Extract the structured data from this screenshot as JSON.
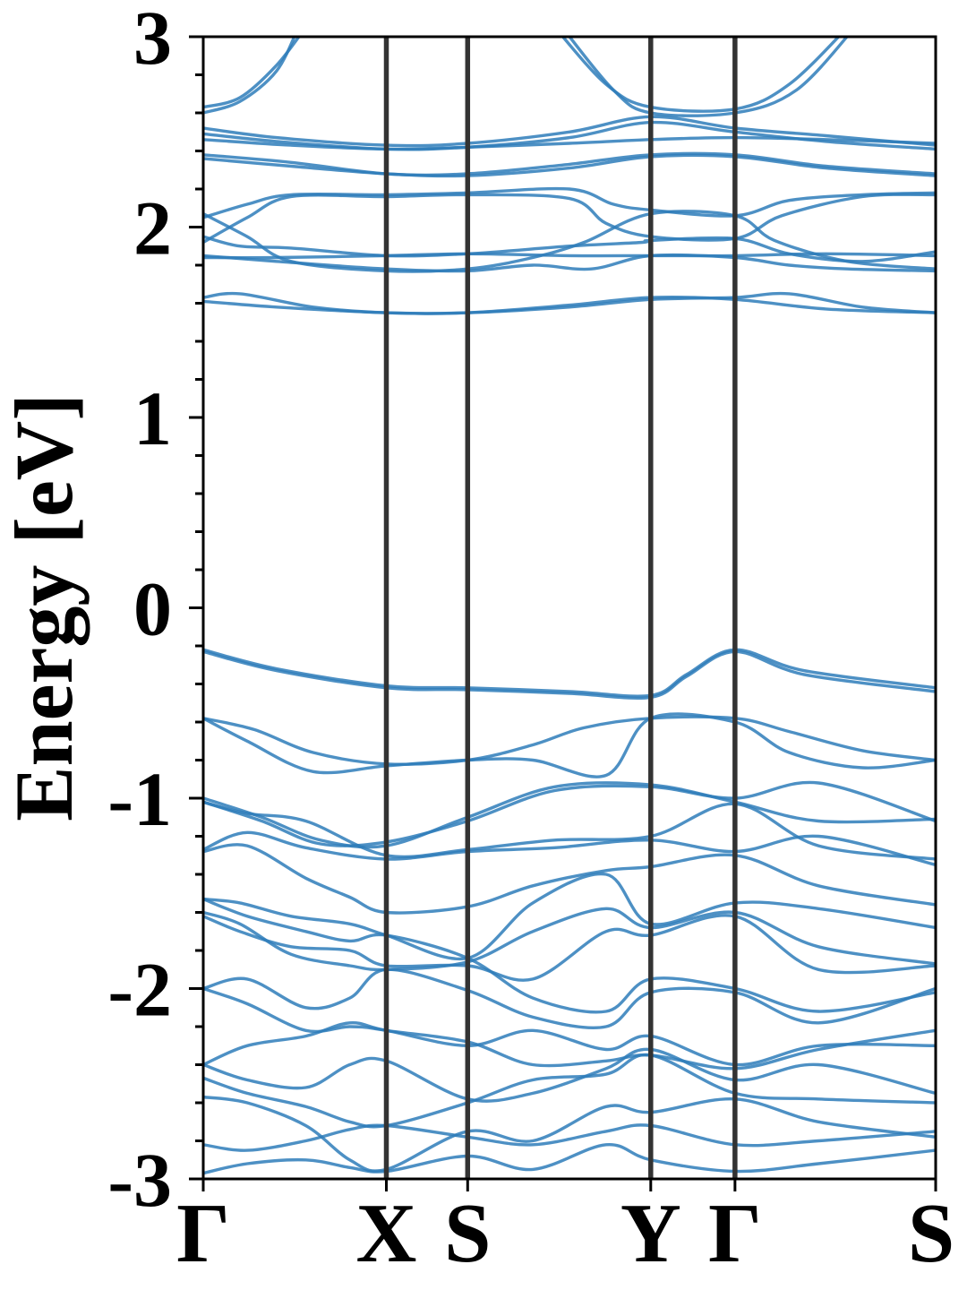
{
  "chart_data": {
    "type": "line",
    "title": "",
    "xlabel": "",
    "ylabel": "Energy [eV]",
    "ylim": [
      -3,
      3
    ],
    "yticks": [
      {
        "value": 3,
        "label": "3"
      },
      {
        "value": 2,
        "label": "2"
      },
      {
        "value": 1,
        "label": "1"
      },
      {
        "value": 0,
        "label": "0"
      },
      {
        "value": -1,
        "label": "-1"
      },
      {
        "value": -2,
        "label": "-2"
      },
      {
        "value": -3,
        "label": "-3"
      }
    ],
    "xlim": [
      0,
      1
    ],
    "kpoints": [
      {
        "label": "Γ",
        "x": 0.0
      },
      {
        "label": "X",
        "x": 0.25
      },
      {
        "label": "S",
        "x": 0.361
      },
      {
        "label": "Y",
        "x": 0.611
      },
      {
        "label": "Γ",
        "x": 0.726
      },
      {
        "label": "S",
        "x": 1.0
      }
    ],
    "grid": false,
    "legend": "none",
    "band_color": "#2e7dba",
    "bands": [
      {
        "x": [
          0,
          0.05,
          0.1,
          0.14
        ],
        "y": [
          2.63,
          2.68,
          2.85,
          3.05
        ]
      },
      {
        "x": [
          0,
          0.05,
          0.1,
          0.13
        ],
        "y": [
          2.6,
          2.66,
          2.82,
          3.05
        ]
      },
      {
        "x": [
          0.48,
          0.55,
          0.611,
          0.726,
          0.8,
          0.88
        ],
        "y": [
          3.05,
          2.75,
          2.63,
          2.62,
          2.75,
          3.05
        ]
      },
      {
        "x": [
          0.49,
          0.56,
          0.611,
          0.726,
          0.81,
          0.89
        ],
        "y": [
          3.05,
          2.72,
          2.6,
          2.6,
          2.72,
          3.05
        ]
      },
      {
        "x": [
          0,
          0.1,
          0.25,
          0.361,
          0.5,
          0.611,
          0.726,
          0.85,
          1.0
        ],
        "y": [
          2.52,
          2.47,
          2.43,
          2.44,
          2.5,
          2.58,
          2.52,
          2.48,
          2.43
        ]
      },
      {
        "x": [
          0,
          0.1,
          0.25,
          0.361,
          0.5,
          0.611,
          0.726,
          0.85,
          1.0
        ],
        "y": [
          2.49,
          2.45,
          2.41,
          2.42,
          2.47,
          2.55,
          2.5,
          2.45,
          2.41
        ]
      },
      {
        "x": [
          0,
          0.12,
          0.25,
          0.361,
          0.5,
          0.611,
          0.726,
          0.85,
          1.0
        ],
        "y": [
          2.46,
          2.43,
          2.41,
          2.42,
          2.44,
          2.46,
          2.47,
          2.46,
          2.44
        ]
      },
      {
        "x": [
          0,
          0.12,
          0.25,
          0.361,
          0.5,
          0.611,
          0.726,
          0.85,
          1.0
        ],
        "y": [
          2.38,
          2.34,
          2.28,
          2.28,
          2.33,
          2.38,
          2.38,
          2.32,
          2.28
        ]
      },
      {
        "x": [
          0,
          0.12,
          0.25,
          0.361,
          0.5,
          0.611,
          0.726,
          0.85,
          1.0
        ],
        "y": [
          2.36,
          2.32,
          2.28,
          2.27,
          2.31,
          2.37,
          2.37,
          2.31,
          2.27
        ]
      },
      {
        "x": [
          0,
          0.06,
          0.12,
          0.25,
          0.361,
          0.5,
          0.56,
          0.611,
          0.726,
          0.8,
          0.9,
          1.0
        ],
        "y": [
          2.05,
          2.12,
          2.17,
          2.17,
          2.18,
          2.2,
          2.12,
          2.09,
          2.06,
          2.14,
          2.17,
          2.18
        ]
      },
      {
        "x": [
          0,
          0.06,
          0.12,
          0.25,
          0.361,
          0.5,
          0.55,
          0.611,
          0.726,
          0.79,
          0.9,
          1.0
        ],
        "y": [
          1.92,
          2.05,
          2.16,
          2.16,
          2.17,
          2.15,
          2.02,
          1.95,
          1.94,
          2.06,
          2.16,
          2.17
        ]
      },
      {
        "x": [
          0,
          0.05,
          0.12,
          0.25,
          0.361,
          0.5,
          0.6,
          0.611,
          0.726,
          0.8,
          0.9,
          1.0
        ],
        "y": [
          1.95,
          1.9,
          1.89,
          1.85,
          1.86,
          1.9,
          1.92,
          1.93,
          1.94,
          1.86,
          1.82,
          1.87
        ]
      },
      {
        "x": [
          0,
          0.06,
          0.12,
          0.25,
          0.361,
          0.45,
          0.52,
          0.611,
          0.726,
          0.78,
          0.88,
          1.0
        ],
        "y": [
          2.07,
          1.95,
          1.82,
          1.77,
          1.78,
          1.84,
          1.92,
          2.07,
          2.06,
          1.93,
          1.82,
          1.78
        ]
      },
      {
        "x": [
          0,
          0.1,
          0.25,
          0.361,
          0.45,
          0.53,
          0.611,
          0.726,
          0.8,
          0.88,
          1.0
        ],
        "y": [
          1.85,
          1.82,
          1.78,
          1.77,
          1.8,
          1.78,
          1.85,
          1.84,
          1.8,
          1.78,
          1.77
        ]
      },
      {
        "x": [
          0,
          0.1,
          0.25,
          0.361,
          0.5,
          0.611,
          0.726,
          0.85,
          1.0
        ],
        "y": [
          1.84,
          1.84,
          1.85,
          1.86,
          1.85,
          1.85,
          1.85,
          1.86,
          1.85
        ]
      },
      {
        "x": [
          0,
          0.05,
          0.15,
          0.25,
          0.361,
          0.5,
          0.611,
          0.726,
          0.8,
          0.9,
          1.0
        ],
        "y": [
          1.63,
          1.65,
          1.58,
          1.55,
          1.55,
          1.58,
          1.62,
          1.63,
          1.65,
          1.58,
          1.55
        ]
      },
      {
        "x": [
          0,
          0.1,
          0.25,
          0.361,
          0.5,
          0.611,
          0.726,
          0.85,
          1.0
        ],
        "y": [
          1.61,
          1.58,
          1.55,
          1.55,
          1.59,
          1.63,
          1.62,
          1.57,
          1.55
        ]
      },
      {
        "x": [
          0,
          0.1,
          0.25,
          0.361,
          0.5,
          0.611,
          0.66,
          0.726,
          0.82,
          1.0
        ],
        "y": [
          -0.22,
          -0.32,
          -0.41,
          -0.42,
          -0.44,
          -0.46,
          -0.35,
          -0.22,
          -0.33,
          -0.42
        ]
      },
      {
        "x": [
          0,
          0.1,
          0.25,
          0.361,
          0.5,
          0.611,
          0.66,
          0.726,
          0.82,
          1.0
        ],
        "y": [
          -0.23,
          -0.33,
          -0.42,
          -0.43,
          -0.45,
          -0.47,
          -0.36,
          -0.23,
          -0.35,
          -0.44
        ]
      },
      {
        "x": [
          0,
          0.07,
          0.15,
          0.25,
          0.361,
          0.45,
          0.52,
          0.611,
          0.726,
          0.8,
          0.9,
          1.0
        ],
        "y": [
          -0.58,
          -0.64,
          -0.76,
          -0.82,
          -0.8,
          -0.72,
          -0.63,
          -0.58,
          -0.58,
          -0.65,
          -0.75,
          -0.8
        ]
      },
      {
        "x": [
          0,
          0.06,
          0.15,
          0.25,
          0.361,
          0.45,
          0.55,
          0.611,
          0.726,
          0.8,
          0.9,
          1.0
        ],
        "y": [
          -0.58,
          -0.7,
          -0.86,
          -0.83,
          -0.8,
          -0.8,
          -0.88,
          -0.58,
          -0.6,
          -0.76,
          -0.84,
          -0.8
        ]
      },
      {
        "x": [
          0,
          0.08,
          0.16,
          0.25,
          0.361,
          0.48,
          0.611,
          0.726,
          0.84,
          1.0
        ],
        "y": [
          -1.0,
          -1.1,
          -1.22,
          -1.25,
          -1.1,
          -0.94,
          -0.93,
          -1.02,
          -1.12,
          -1.11
        ]
      },
      {
        "x": [
          0,
          0.08,
          0.16,
          0.25,
          0.361,
          0.48,
          0.611,
          0.726,
          0.84,
          1.0
        ],
        "y": [
          -1.02,
          -1.12,
          -1.24,
          -1.23,
          -1.12,
          -0.96,
          -0.94,
          -1.0,
          -0.92,
          -1.12
        ]
      },
      {
        "x": [
          0,
          0.06,
          0.14,
          0.25,
          0.361,
          0.48,
          0.611,
          0.726,
          0.84,
          1.0
        ],
        "y": [
          -1.02,
          -1.08,
          -1.12,
          -1.3,
          -1.27,
          -1.22,
          -1.2,
          -1.03,
          -1.25,
          -1.32
        ]
      },
      {
        "x": [
          0,
          0.06,
          0.14,
          0.25,
          0.361,
          0.48,
          0.611,
          0.726,
          0.84,
          1.0
        ],
        "y": [
          -1.27,
          -1.18,
          -1.26,
          -1.32,
          -1.28,
          -1.26,
          -1.22,
          -1.28,
          -1.2,
          -1.35
        ]
      },
      {
        "x": [
          0,
          0.06,
          0.14,
          0.2,
          0.25,
          0.361,
          0.45,
          0.55,
          0.611,
          0.726,
          0.84,
          1.0
        ],
        "y": [
          -1.28,
          -1.25,
          -1.42,
          -1.52,
          -1.6,
          -1.57,
          -1.46,
          -1.38,
          -1.36,
          -1.3,
          -1.46,
          -1.56
        ]
      },
      {
        "x": [
          0,
          0.05,
          0.12,
          0.2,
          0.25,
          0.361,
          0.45,
          0.55,
          0.611,
          0.726,
          0.84,
          1.0
        ],
        "y": [
          -1.53,
          -1.55,
          -1.62,
          -1.66,
          -1.72,
          -1.84,
          -1.55,
          -1.4,
          -1.66,
          -1.55,
          -1.58,
          -1.68
        ]
      },
      {
        "x": [
          0,
          0.05,
          0.12,
          0.2,
          0.25,
          0.361,
          0.45,
          0.55,
          0.611,
          0.726,
          0.84,
          1.0
        ],
        "y": [
          -1.6,
          -1.66,
          -1.82,
          -1.88,
          -1.9,
          -1.86,
          -1.7,
          -1.58,
          -1.68,
          -1.6,
          -1.78,
          -1.87
        ]
      },
      {
        "x": [
          0,
          0.05,
          0.12,
          0.2,
          0.25,
          0.361,
          0.45,
          0.55,
          0.611,
          0.726,
          0.84,
          1.0
        ],
        "y": [
          -1.62,
          -1.7,
          -1.78,
          -1.8,
          -1.88,
          -1.88,
          -1.95,
          -1.7,
          -1.72,
          -1.62,
          -1.9,
          -1.88
        ]
      },
      {
        "x": [
          0,
          0.06,
          0.14,
          0.2,
          0.25,
          0.361,
          0.45,
          0.55,
          0.611,
          0.726,
          0.84,
          1.0
        ],
        "y": [
          -1.53,
          -1.62,
          -1.7,
          -1.75,
          -1.72,
          -1.84,
          -2.05,
          -2.12,
          -1.95,
          -2.0,
          -2.12,
          -2.02
        ]
      },
      {
        "x": [
          0,
          0.06,
          0.14,
          0.2,
          0.25,
          0.361,
          0.45,
          0.55,
          0.611,
          0.726,
          0.84,
          1.0
        ],
        "y": [
          -2.0,
          -1.95,
          -2.1,
          -2.05,
          -1.9,
          -2.01,
          -2.15,
          -2.2,
          -2.02,
          -2.02,
          -2.18,
          -2.0
        ]
      },
      {
        "x": [
          0,
          0.06,
          0.14,
          0.2,
          0.25,
          0.361,
          0.45,
          0.55,
          0.611,
          0.726,
          0.84,
          1.0
        ],
        "y": [
          -2.0,
          -2.08,
          -2.22,
          -2.2,
          -2.22,
          -2.3,
          -2.22,
          -2.32,
          -2.25,
          -2.4,
          -2.3,
          -2.3
        ]
      },
      {
        "x": [
          0,
          0.06,
          0.14,
          0.2,
          0.25,
          0.361,
          0.45,
          0.55,
          0.611,
          0.726,
          0.84,
          1.0
        ],
        "y": [
          -2.4,
          -2.3,
          -2.25,
          -2.18,
          -2.22,
          -2.28,
          -2.4,
          -2.38,
          -2.35,
          -2.42,
          -2.32,
          -2.22
        ]
      },
      {
        "x": [
          0,
          0.06,
          0.14,
          0.2,
          0.25,
          0.361,
          0.45,
          0.55,
          0.611,
          0.726,
          0.84,
          1.0
        ],
        "y": [
          -2.4,
          -2.48,
          -2.52,
          -2.4,
          -2.38,
          -2.58,
          -2.55,
          -2.42,
          -2.32,
          -2.48,
          -2.4,
          -2.55
        ]
      },
      {
        "x": [
          0,
          0.06,
          0.14,
          0.2,
          0.25,
          0.361,
          0.45,
          0.55,
          0.611,
          0.726,
          0.84,
          1.0
        ],
        "y": [
          -2.47,
          -2.55,
          -2.62,
          -2.7,
          -2.72,
          -2.6,
          -2.48,
          -2.45,
          -2.35,
          -2.55,
          -2.58,
          -2.6
        ]
      },
      {
        "x": [
          0,
          0.06,
          0.14,
          0.2,
          0.25,
          0.361,
          0.45,
          0.55,
          0.611,
          0.726,
          0.84,
          1.0
        ],
        "y": [
          -2.57,
          -2.6,
          -2.72,
          -2.9,
          -2.95,
          -2.75,
          -2.8,
          -2.62,
          -2.65,
          -2.58,
          -2.7,
          -2.78
        ]
      },
      {
        "x": [
          0,
          0.06,
          0.14,
          0.2,
          0.25,
          0.361,
          0.45,
          0.55,
          0.611,
          0.726,
          0.84,
          1.0
        ],
        "y": [
          -2.82,
          -2.85,
          -2.8,
          -2.74,
          -2.72,
          -2.78,
          -2.82,
          -2.75,
          -2.72,
          -2.82,
          -2.8,
          -2.75
        ]
      },
      {
        "x": [
          0,
          0.06,
          0.14,
          0.2,
          0.25,
          0.361,
          0.45,
          0.55,
          0.611,
          0.726,
          0.84,
          1.0
        ],
        "y": [
          -2.97,
          -2.92,
          -2.9,
          -2.94,
          -2.96,
          -2.88,
          -2.95,
          -2.82,
          -2.9,
          -2.96,
          -2.92,
          -2.85
        ]
      }
    ]
  }
}
